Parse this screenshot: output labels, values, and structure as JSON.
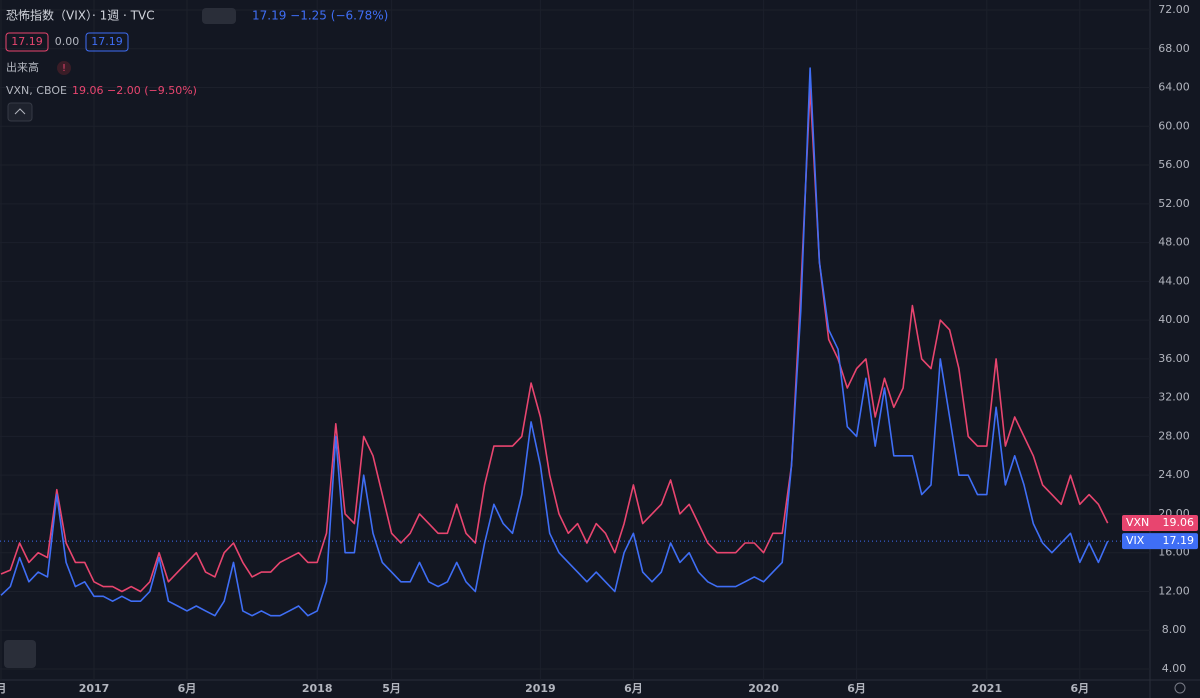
{
  "header": {
    "symbol": "恐怖指数（VIX）· 1週 · TVC",
    "change": "17.19  −1.25 (−6.78%)",
    "box_open": "17.19",
    "box_mid": "0.00",
    "box_close": "17.19",
    "volume": "出来高",
    "compare_symbol": "VXN, CBOE",
    "compare_change": "19.06  −2.00 (−9.50%)"
  },
  "chart_data": {
    "type": "line",
    "categories": [
      "月",
      null,
      null,
      null,
      null,
      null,
      null,
      null,
      null,
      null,
      "2017",
      null,
      null,
      null,
      null,
      null,
      null,
      null,
      null,
      null,
      "6月",
      null,
      null,
      null,
      null,
      null,
      null,
      null,
      null,
      null,
      null,
      null,
      null,
      null,
      "2018",
      null,
      null,
      null,
      null,
      null,
      null,
      null,
      "5月",
      null,
      null,
      null,
      null,
      null,
      null,
      null,
      null,
      null,
      null,
      null,
      null,
      null,
      null,
      null,
      "2019",
      null,
      null,
      null,
      null,
      null,
      null,
      null,
      null,
      null,
      "6月",
      null,
      null,
      null,
      null,
      null,
      null,
      null,
      null,
      null,
      null,
      null,
      null,
      null,
      "2020",
      null,
      null,
      null,
      null,
      null,
      null,
      null,
      null,
      null,
      "6月",
      null,
      null,
      null,
      null,
      null,
      null,
      null,
      null,
      null,
      null,
      null,
      null,
      null,
      "2021",
      null,
      null,
      null,
      null,
      null,
      null,
      null,
      null,
      null,
      "6月",
      null,
      null,
      null
    ],
    "series": [
      {
        "name": "VXN",
        "color": "#e8456f",
        "values": [
          13.8,
          14.2,
          17,
          15,
          16,
          15.5,
          22.5,
          17,
          15,
          15,
          13,
          12.5,
          12.5,
          12,
          12.5,
          12,
          13,
          16,
          13,
          14,
          15,
          16,
          14,
          13.5,
          16,
          17,
          15,
          13.5,
          14,
          14,
          15,
          15.5,
          16,
          15,
          15,
          18,
          29.3,
          20,
          19,
          28,
          26,
          22,
          18,
          17,
          18,
          20,
          19,
          18,
          18,
          21,
          18,
          17,
          23,
          27,
          27,
          27,
          28,
          33.5,
          30,
          24,
          20,
          18,
          19,
          17,
          19,
          18,
          16,
          19,
          23,
          19,
          20,
          21,
          23.5,
          20,
          21,
          19,
          17,
          16,
          16,
          16,
          17,
          17,
          16,
          18,
          18,
          25,
          43,
          64,
          46,
          38,
          36,
          33,
          35,
          36,
          30,
          34,
          31,
          33,
          41.5,
          36,
          35,
          40,
          39,
          35,
          28,
          27,
          27,
          36,
          27,
          30,
          28,
          26,
          23,
          22,
          21,
          24,
          21,
          22,
          21,
          19.06
        ]
      },
      {
        "name": "VIX",
        "color": "#3f6ef5",
        "values": [
          11.6,
          12.5,
          15.5,
          13,
          14,
          13.5,
          22,
          15,
          12.5,
          13,
          11.5,
          11.5,
          11,
          11.5,
          11,
          11,
          12,
          15.5,
          11,
          10.5,
          10,
          10.5,
          10,
          9.5,
          11,
          15,
          10,
          9.5,
          10,
          9.5,
          9.5,
          10,
          10.5,
          9.5,
          10,
          13,
          28,
          16,
          16,
          24,
          18,
          15,
          14,
          13,
          13,
          15,
          13,
          12.5,
          13,
          15,
          13,
          12,
          17,
          21,
          19,
          18,
          22,
          29.5,
          25,
          18,
          16,
          15,
          14,
          13,
          14,
          13,
          12,
          16,
          18,
          14,
          13,
          14,
          17,
          15,
          16,
          14,
          13,
          12.5,
          12.5,
          12.5,
          13,
          13.5,
          13,
          14,
          15,
          25,
          41,
          66,
          46,
          39,
          37,
          29,
          28,
          34,
          27,
          33,
          26,
          26,
          26,
          22,
          23,
          36,
          30,
          24,
          24,
          22,
          22,
          31,
          23,
          26,
          23,
          19,
          17,
          16,
          17,
          18,
          15,
          17,
          15,
          17.19
        ]
      }
    ],
    "ylim": [
      4,
      72
    ],
    "yticks": [
      {
        "value": 4,
        "label": "4.00"
      },
      {
        "value": 8,
        "label": "8.00"
      },
      {
        "value": 12,
        "label": "12.00"
      },
      {
        "value": 16,
        "label": "16.00"
      },
      {
        "value": 20,
        "label": "20.00"
      },
      {
        "value": 24,
        "label": "24.00"
      },
      {
        "value": 28,
        "label": "28.00"
      },
      {
        "value": 32,
        "label": "32.00"
      },
      {
        "value": 36,
        "label": "36.00"
      },
      {
        "value": 40,
        "label": "40.00"
      },
      {
        "value": 44,
        "label": "44.00"
      },
      {
        "value": 48,
        "label": "48.00"
      },
      {
        "value": 52,
        "label": "52.00"
      },
      {
        "value": 56,
        "label": "56.00"
      },
      {
        "value": 60,
        "label": "60.00"
      },
      {
        "value": 64,
        "label": "64.00"
      },
      {
        "value": 68,
        "label": "68.00"
      },
      {
        "value": 72,
        "label": "72.00"
      }
    ],
    "grid": true
  }
}
